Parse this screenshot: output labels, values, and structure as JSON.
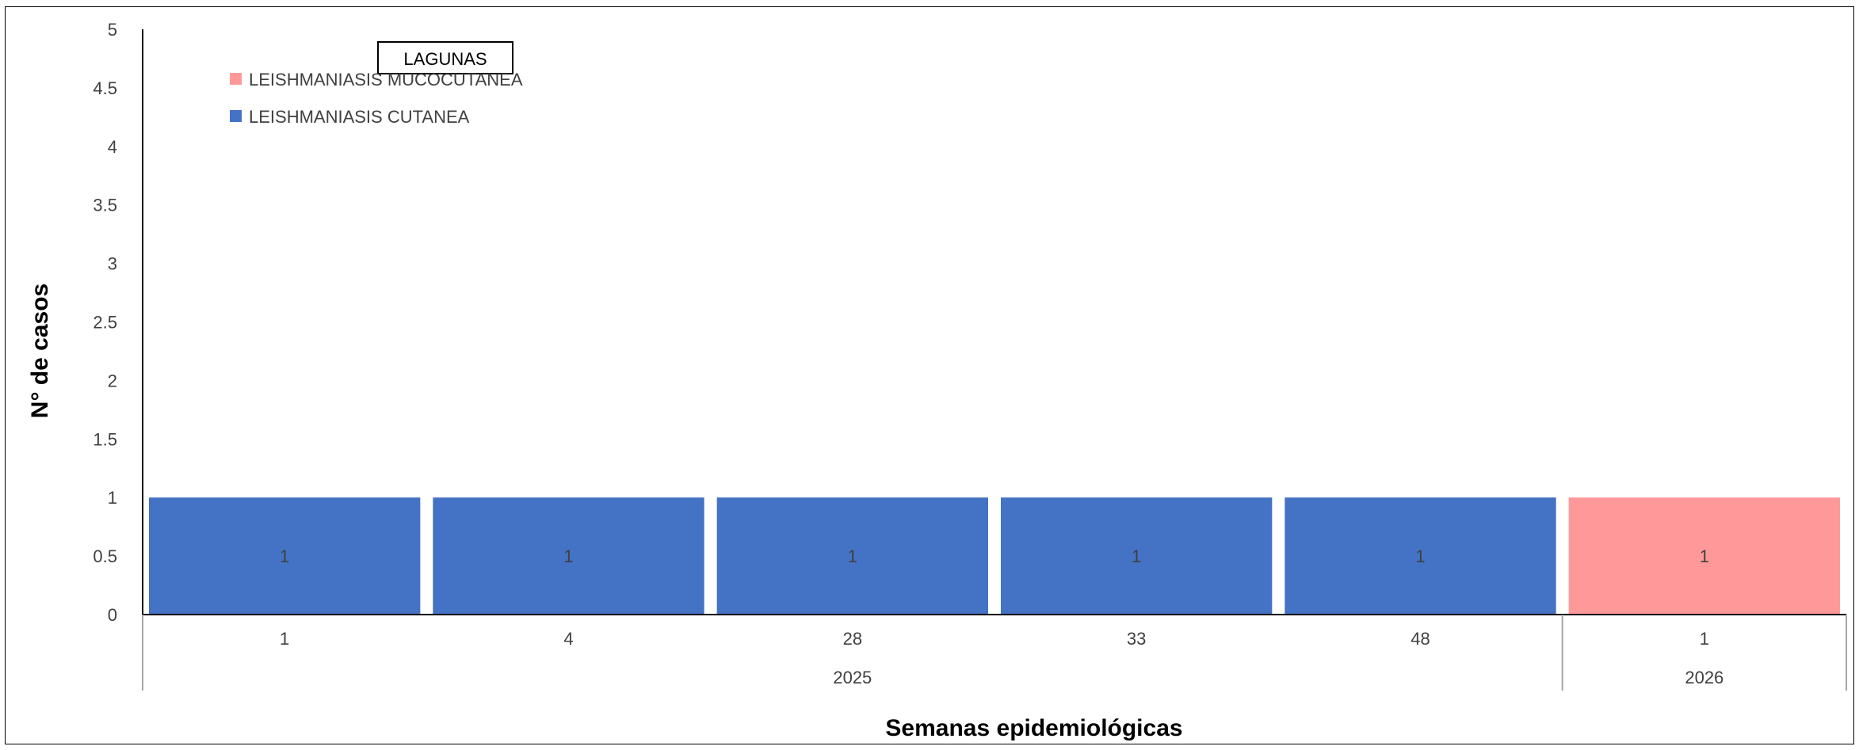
{
  "chart_data": {
    "type": "bar",
    "title": "LAGUNAS",
    "xlabel": "Semanas epidemiológicas",
    "ylabel": "N° de casos",
    "ylim": [
      0,
      5
    ],
    "y_ticks": [
      "0",
      "0.5",
      "1",
      "1.5",
      "2",
      "2.5",
      "3",
      "3.5",
      "4",
      "4.5",
      "5"
    ],
    "grid": false,
    "legend_position": "top-left",
    "categories": [
      {
        "week": "1",
        "year": "2025"
      },
      {
        "week": "4",
        "year": "2025"
      },
      {
        "week": "28",
        "year": "2025"
      },
      {
        "week": "33",
        "year": "2025"
      },
      {
        "week": "48",
        "year": "2025"
      },
      {
        "week": "1",
        "year": "2026"
      }
    ],
    "year_groups": [
      {
        "label": "2025",
        "count": 5
      },
      {
        "label": "2026",
        "count": 1
      }
    ],
    "series": [
      {
        "name": "LEISHMANIASIS MUCOCUTANEA",
        "color": "#FF9999",
        "values": [
          0,
          0,
          0,
          0,
          0,
          1
        ]
      },
      {
        "name": "LEISHMANIASIS CUTANEA",
        "color": "#4472C4",
        "values": [
          1,
          1,
          1,
          1,
          1,
          0
        ]
      }
    ],
    "data_labels": [
      "1",
      "1",
      "1",
      "1",
      "1",
      "1"
    ]
  }
}
